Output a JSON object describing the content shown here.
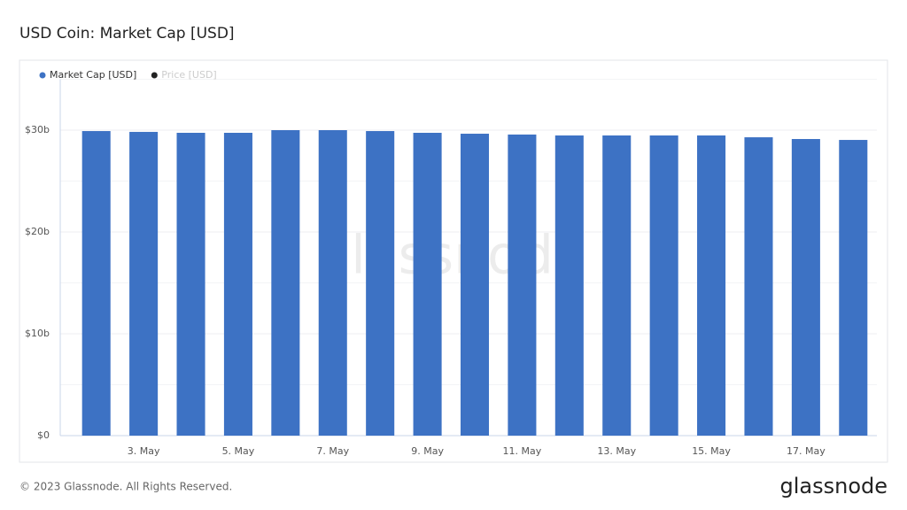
{
  "chart_data": {
    "type": "bar",
    "title": "USD Coin: Market Cap [USD]",
    "categories": [
      null,
      "3. May",
      null,
      "5. May",
      null,
      "7. May",
      null,
      "9. May",
      null,
      "11. May",
      null,
      "13. May",
      null,
      "15. May",
      null,
      "17. May",
      null
    ],
    "series": [
      {
        "name": "Market Cap [USD]",
        "color": "#3d72c4",
        "values": [
          29910000000,
          29830000000,
          29740000000,
          29740000000,
          30000000000,
          30000000000,
          29910000000,
          29740000000,
          29650000000,
          29570000000,
          29480000000,
          29480000000,
          29480000000,
          29480000000,
          29300000000,
          29130000000,
          29040000000
        ]
      }
    ],
    "inactive_series": [
      {
        "name": "Price [USD]",
        "color": "#222222"
      }
    ],
    "ylim": [
      0,
      35000000000
    ],
    "yticks": [
      {
        "value": 0,
        "label": "$0"
      },
      {
        "value": 10000000000,
        "label": "$10b"
      },
      {
        "value": 20000000000,
        "label": "$20b"
      },
      {
        "value": 30000000000,
        "label": "$30b"
      }
    ],
    "minor_yticks": [
      5000000000,
      15000000000,
      25000000000,
      35000000000
    ],
    "grid": true,
    "watermark": "glassnode"
  },
  "footer": {
    "copyright": "© 2023 Glassnode. All Rights Reserved.",
    "logo": "glassnode"
  }
}
